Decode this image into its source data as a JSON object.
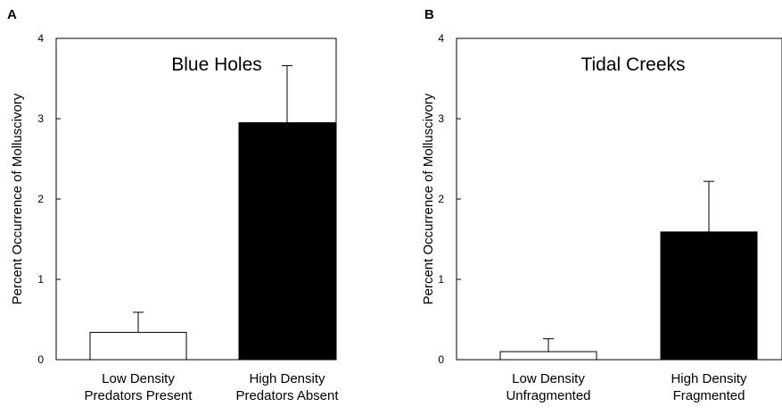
{
  "chart_data": [
    {
      "type": "bar",
      "panel_label": "A",
      "title": "Blue Holes",
      "ylabel": "Percent Occurrence of Molluscivory",
      "xlabel": "",
      "ylim": [
        0,
        4
      ],
      "yticks": [
        "0",
        "1",
        "2",
        "3",
        "4"
      ],
      "categories": [
        [
          "Low Density",
          "Predators Present"
        ],
        [
          "High Density",
          "Predators Absent"
        ]
      ],
      "values": [
        0.34,
        2.95
      ],
      "errors": [
        0.25,
        0.71
      ],
      "bar_colors": [
        "#ffffff",
        "#000000"
      ]
    },
    {
      "type": "bar",
      "panel_label": "B",
      "title": "Tidal Creeks",
      "ylabel": "Percent Occurrence of Molluscivory",
      "xlabel": "",
      "ylim": [
        0,
        4
      ],
      "yticks": [
        "0",
        "1",
        "2",
        "3",
        "4"
      ],
      "categories": [
        [
          "Low Density",
          "Unfragmented"
        ],
        [
          "High Density",
          "Fragmented"
        ]
      ],
      "values": [
        0.1,
        1.59
      ],
      "errors": [
        0.16,
        0.63
      ],
      "bar_colors": [
        "#ffffff",
        "#000000"
      ]
    }
  ]
}
